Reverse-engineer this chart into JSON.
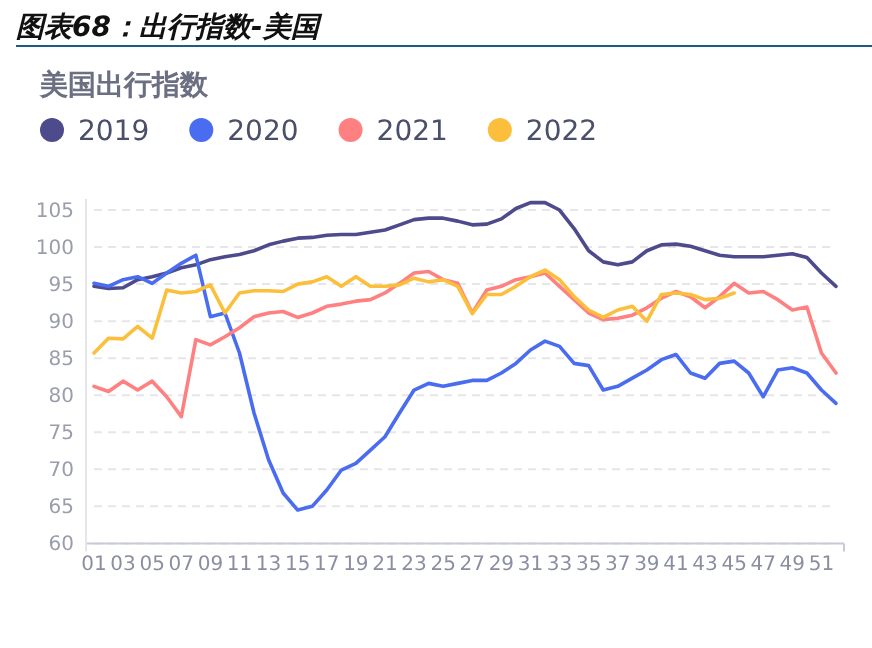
{
  "chart_data": {
    "type": "line",
    "title": "图表68：出行指数-美国",
    "subtitle": "美国出行指数",
    "categories": [
      "01",
      null,
      "03",
      null,
      "05",
      null,
      "07",
      null,
      "09",
      null,
      "11",
      null,
      "13",
      null,
      "15",
      null,
      "17",
      null,
      "19",
      null,
      "21",
      null,
      "23",
      null,
      "25",
      null,
      "27",
      null,
      "29",
      null,
      "31",
      null,
      "33",
      null,
      "35",
      null,
      "37",
      null,
      "39",
      null,
      "41",
      null,
      "43",
      null,
      "45",
      null,
      "47",
      null,
      "49",
      null,
      "51",
      null
    ],
    "series": [
      {
        "name": "2019",
        "color": "#4d4b8c",
        "values": [
          94.7,
          94.4,
          94.5,
          95.6,
          96,
          96.5,
          97.2,
          97.6,
          98.3,
          98.7,
          99,
          99.5,
          100.3,
          100.8,
          101.2,
          101.3,
          101.6,
          101.7,
          101.7,
          102,
          102.3,
          103,
          103.7,
          103.9,
          103.9,
          103.5,
          103,
          103.1,
          103.8,
          105.2,
          106,
          106,
          105,
          102.5,
          99.5,
          98,
          97.6,
          98,
          99.5,
          100.3,
          100.4,
          100.1,
          99.5,
          98.9,
          98.7,
          98.7,
          98.7,
          98.9,
          99.1,
          98.6,
          96.5,
          94.7
        ]
      },
      {
        "name": "2020",
        "color": "#4a6cf0",
        "values": [
          95.1,
          94.7,
          95.6,
          96,
          95.1,
          96.5,
          97.8,
          98.9,
          90.6,
          91.1,
          85.7,
          77.6,
          71.3,
          66.8,
          64.5,
          65,
          67.2,
          69.9,
          70.8,
          72.6,
          74.4,
          77.6,
          80.7,
          81.6,
          81.2,
          81.6,
          82,
          82,
          83,
          84.3,
          86.1,
          87.3,
          86.6,
          84.3,
          84,
          80.7,
          81.2,
          82.3,
          83.4,
          84.8,
          85.5,
          83,
          82.3,
          84.3,
          84.6,
          83,
          79.8,
          83.4,
          83.7,
          83,
          80.7,
          78.9
        ]
      },
      {
        "name": "2021",
        "color": "#ff8080",
        "values": [
          81.2,
          80.5,
          81.9,
          80.7,
          81.9,
          79.8,
          77.1,
          87.5,
          86.8,
          87.9,
          89.1,
          90.6,
          91.1,
          91.3,
          90.5,
          91.1,
          92,
          92.3,
          92.7,
          92.9,
          93.8,
          95.1,
          96.5,
          96.7,
          95.6,
          95.1,
          91.1,
          94.2,
          94.7,
          95.6,
          96,
          96.5,
          94.7,
          92.9,
          91.1,
          90.2,
          90.4,
          90.8,
          91.8,
          93.1,
          94,
          93.3,
          91.8,
          93.3,
          95.1,
          93.8,
          94,
          92.9,
          91.5,
          91.9,
          85.7,
          83
        ]
      },
      {
        "name": "2022",
        "color": "#fcbf3c",
        "values": [
          85.7,
          87.7,
          87.6,
          89.3,
          87.7,
          94.2,
          93.8,
          94,
          94.9,
          91.1,
          93.8,
          94.1,
          94.1,
          94,
          95,
          95.3,
          96,
          94.7,
          96,
          94.7,
          94.7,
          94.9,
          95.8,
          95.3,
          95.6,
          94.7,
          91,
          93.6,
          93.6,
          94.7,
          96,
          96.9,
          95.6,
          93.3,
          91.5,
          90.5,
          91.5,
          92,
          90,
          93.6,
          93.8,
          93.6,
          92.9,
          93.1,
          93.8,
          null,
          null,
          null,
          null,
          null,
          null,
          null
        ]
      }
    ],
    "ylim": [
      60,
      106.5
    ],
    "yticks": [
      60,
      65,
      70,
      75,
      80,
      85,
      90,
      95,
      100,
      105
    ],
    "grid": "y",
    "legend": "top"
  }
}
